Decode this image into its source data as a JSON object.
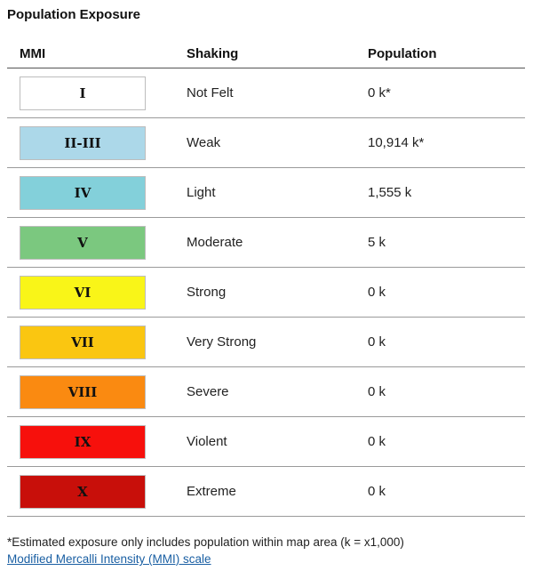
{
  "title": "Population Exposure",
  "headers": {
    "mmi": "MMI",
    "shaking": "Shaking",
    "population": "Population"
  },
  "rows": [
    {
      "mmi": "I",
      "shaking": "Not Felt",
      "population": "0 k*",
      "color": "#ffffff"
    },
    {
      "mmi": "II-III",
      "shaking": "Weak",
      "population": "10,914 k*",
      "color": "#acd8e9"
    },
    {
      "mmi": "IV",
      "shaking": "Light",
      "population": "1,555 k",
      "color": "#83d0da"
    },
    {
      "mmi": "V",
      "shaking": "Moderate",
      "population": "5 k",
      "color": "#7bc87f"
    },
    {
      "mmi": "VI",
      "shaking": "Strong",
      "population": "0 k",
      "color": "#f9f518"
    },
    {
      "mmi": "VII",
      "shaking": "Very Strong",
      "population": "0 k",
      "color": "#fac611"
    },
    {
      "mmi": "VIII",
      "shaking": "Severe",
      "population": "0 k",
      "color": "#fa8a11"
    },
    {
      "mmi": "IX",
      "shaking": "Violent",
      "population": "0 k",
      "color": "#f7100c"
    },
    {
      "mmi": "X",
      "shaking": "Extreme",
      "population": "0 k",
      "color": "#c80f0a"
    }
  ],
  "footnote": "*Estimated exposure only includes population within map area (k = x1,000)",
  "link_text": "Modified Mercalli Intensity (MMI) scale"
}
